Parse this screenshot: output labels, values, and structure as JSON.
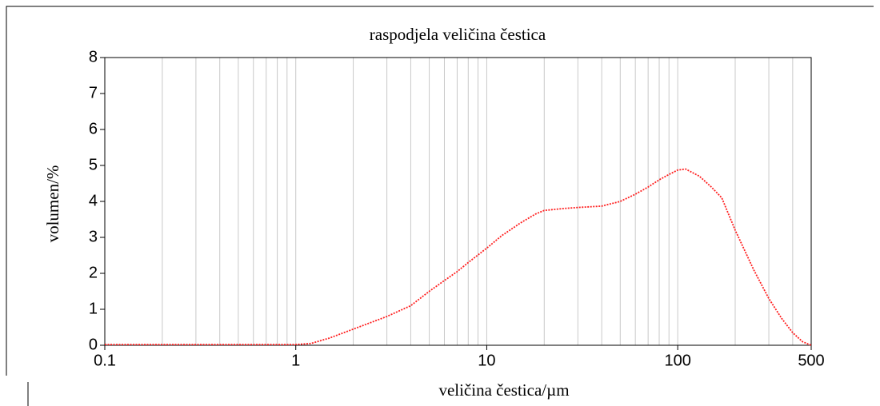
{
  "chart_data": {
    "type": "line",
    "title": "raspodjela veličina čestica",
    "x_label": "veličina čestica/µm",
    "y_label": "volumen/%",
    "xscale": "log",
    "xlim": [
      0.1,
      500
    ],
    "xticks": [
      0.1,
      1,
      10,
      100,
      500
    ],
    "xgrid": [
      0.2,
      0.3,
      0.4,
      0.5,
      0.6,
      0.7,
      0.8,
      0.9,
      1,
      2,
      3,
      4,
      5,
      6,
      7,
      8,
      9,
      10,
      20,
      30,
      40,
      50,
      60,
      70,
      80,
      90,
      100,
      200,
      300,
      400
    ],
    "grid": true,
    "ylim": [
      0,
      8
    ],
    "yticks": [
      0,
      1,
      2,
      3,
      4,
      5,
      6,
      7,
      8
    ],
    "x": [
      0.1,
      0.2,
      0.5,
      1,
      1.2,
      1.5,
      2,
      3,
      4,
      5,
      6,
      7,
      8,
      10,
      12,
      15,
      18,
      20,
      25,
      30,
      40,
      50,
      60,
      70,
      80,
      90,
      100,
      110,
      130,
      150,
      170,
      200,
      250,
      300,
      350,
      400,
      450,
      500
    ],
    "series": [
      {
        "color": "#ff2020",
        "values": [
          0.02,
          0.02,
          0.02,
          0.02,
          0.05,
          0.2,
          0.45,
          0.8,
          1.1,
          1.5,
          1.8,
          2.05,
          2.3,
          2.7,
          3.05,
          3.4,
          3.65,
          3.75,
          3.8,
          3.83,
          3.87,
          4.0,
          4.2,
          4.4,
          4.6,
          4.75,
          4.87,
          4.9,
          4.7,
          4.4,
          4.1,
          3.2,
          2.1,
          1.3,
          0.75,
          0.35,
          0.1,
          0
        ]
      }
    ]
  }
}
